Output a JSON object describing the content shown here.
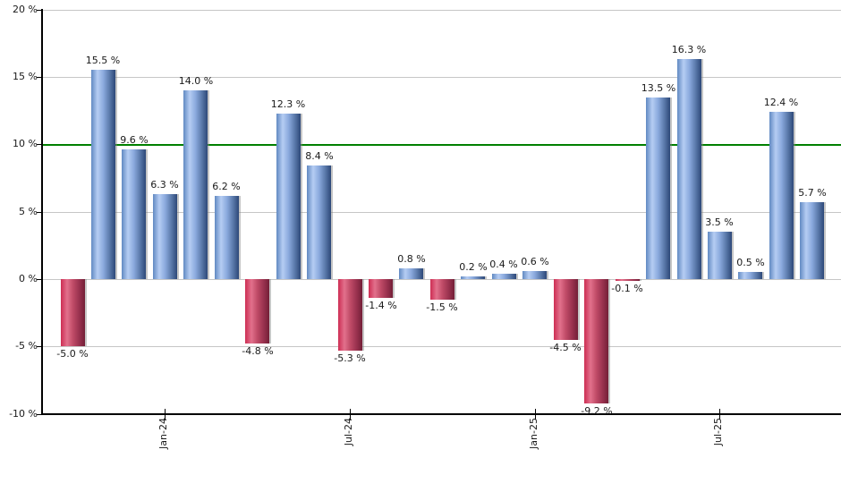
{
  "chart_data": {
    "type": "bar",
    "title": "",
    "xlabel": "",
    "ylabel": "",
    "ylim": [
      -10,
      20
    ],
    "grid": true,
    "legend": "none",
    "values": [
      -5.0,
      15.5,
      9.6,
      6.3,
      14.0,
      6.2,
      -4.8,
      12.3,
      8.4,
      -5.3,
      -1.4,
      0.8,
      -1.5,
      0.2,
      0.4,
      0.6,
      -4.5,
      -9.2,
      -0.1,
      13.5,
      16.3,
      3.5,
      0.5,
      12.4,
      5.7
    ],
    "bar_labels": [
      "-5.0 %",
      "15.5 %",
      "9.6 %",
      "6.3 %",
      "14.0 %",
      "6.2 %",
      "-4.8 %",
      "12.3 %",
      "8.4 %",
      "-5.3 %",
      "-1.4 %",
      "0.8 %",
      "-1.5 %",
      "0.2 %",
      "0.4 %",
      "0.6 %",
      "-4.5 %",
      "-9.2 %",
      "-0.1 %",
      "13.5 %",
      "16.3 %",
      "3.5 %",
      "0.5 %",
      "12.4 %",
      "5.7 %"
    ],
    "y_ticks": [
      {
        "value": 20,
        "label": "20 %"
      },
      {
        "value": 15,
        "label": "15 %"
      },
      {
        "value": 10,
        "label": "10 %"
      },
      {
        "value": 5,
        "label": "5 %"
      },
      {
        "value": 0,
        "label": "0 %"
      },
      {
        "value": -5,
        "label": "-5 %"
      },
      {
        "value": -10,
        "label": "-10 %"
      }
    ],
    "x_ticks": [
      {
        "bar_index": 3,
        "label": "Jan-24"
      },
      {
        "bar_index": 9,
        "label": "Jul-24"
      },
      {
        "bar_index": 15,
        "label": "Jan-25"
      },
      {
        "bar_index": 21,
        "label": "Jul-25"
      }
    ],
    "benchmark_line": {
      "value": 10,
      "color": "#008000"
    },
    "colors": {
      "positive_bar_gradient": [
        "#6189c2",
        "#b5cdf3",
        "#8baade",
        "#5c7bac",
        "#2d4878"
      ],
      "negative_bar_gradient": [
        "#cd2d53",
        "#e2718c",
        "#c04b67",
        "#9b3350",
        "#731f37"
      ],
      "gridline": "#c6c6c6",
      "axis": "#000000",
      "label_text": "#1a1a1a",
      "background": "#ffffff"
    }
  }
}
